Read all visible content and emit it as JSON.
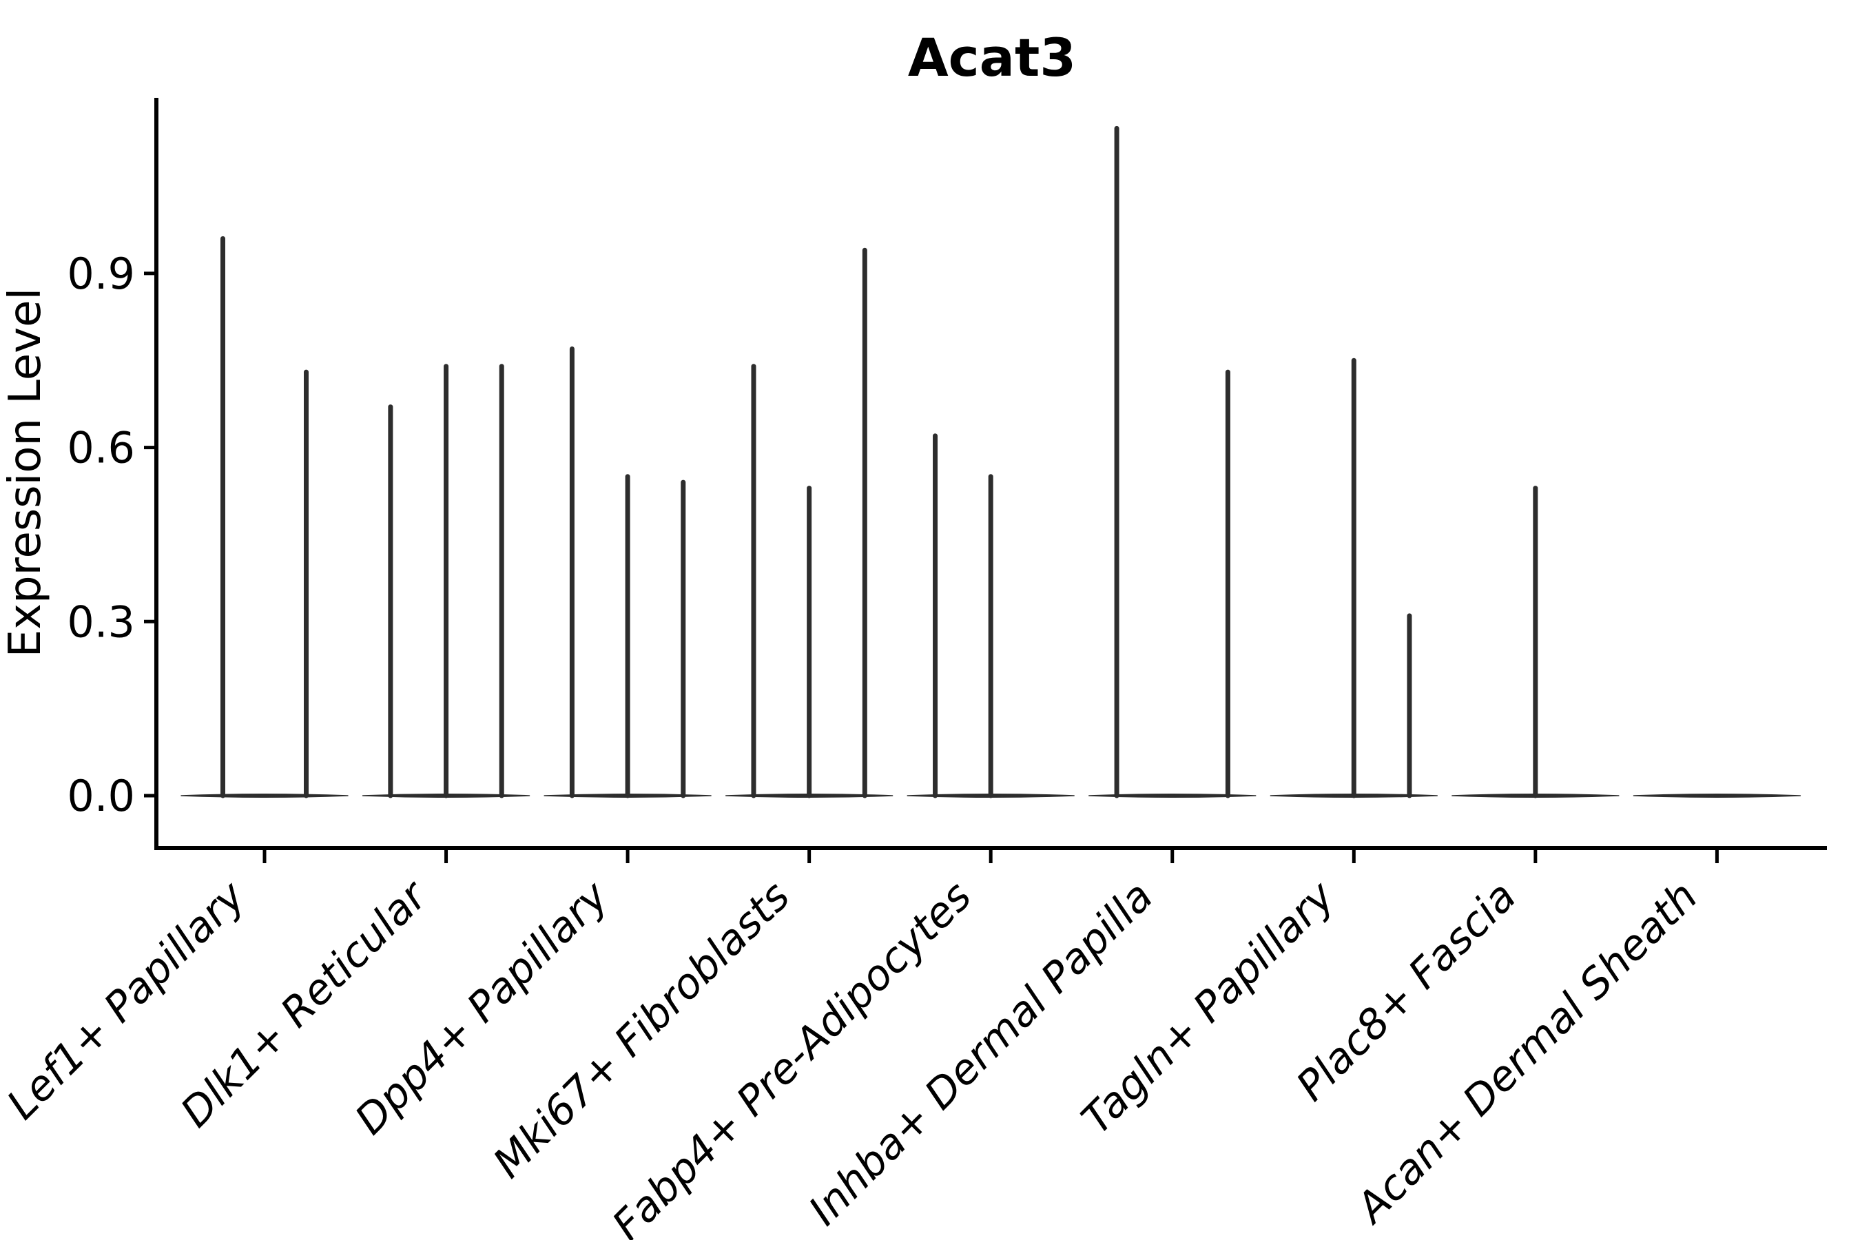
{
  "figure": {
    "background": "#ffffff"
  },
  "chart_data": {
    "type": "violin",
    "title": "Acat3",
    "ylabel": "Expression Level",
    "xlabel": "",
    "yticks": [
      "0.0",
      "0.3",
      "0.6",
      "0.9"
    ],
    "ytick_values": [
      0.0,
      0.3,
      0.6,
      0.9
    ],
    "ylim": [
      -0.09,
      1.2
    ],
    "grid": false,
    "legend": "none",
    "x_label_rotation_deg": 45,
    "categories": [
      "Lef1+ Papillary",
      "Dlk1+ Reticular",
      "Dpp4+ Papillary",
      "Mki67+ Fibroblasts",
      "Fabp4+ Pre-Adipocytes",
      "Inhba+ Dermal Papilla",
      "Tagln+ Papillary",
      "Plac8+ Fascia",
      "Acan+ Dermal Sheath"
    ],
    "groups": [
      {
        "category": "Lef1+ Papillary",
        "violin_maxima": [
          0.96,
          0.73
        ]
      },
      {
        "category": "Dlk1+ Reticular",
        "violin_maxima": [
          0.67,
          0.74,
          0.74
        ]
      },
      {
        "category": "Dpp4+ Papillary",
        "violin_maxima": [
          0.77,
          0.55,
          0.54
        ]
      },
      {
        "category": "Mki67+ Fibroblasts",
        "violin_maxima": [
          0.74,
          0.53,
          0.94
        ]
      },
      {
        "category": "Fabp4+ Pre-Adipocytes",
        "violin_maxima": [
          0.62,
          0.55,
          0
        ]
      },
      {
        "category": "Inhba+ Dermal Papilla",
        "violin_maxima": [
          1.15,
          0,
          0.73
        ]
      },
      {
        "category": "Tagln+ Papillary",
        "violin_maxima": [
          0,
          0.75,
          0.31
        ]
      },
      {
        "category": "Plac8+ Fascia",
        "violin_maxima": [
          0,
          0.53,
          0
        ]
      },
      {
        "category": "Acan+ Dermal Sheath",
        "violin_maxima": [
          0,
          0,
          0
        ]
      }
    ],
    "colors": {
      "violin_stroke": "#2d2d2d",
      "axis": "#000000",
      "text": "#000000"
    }
  }
}
